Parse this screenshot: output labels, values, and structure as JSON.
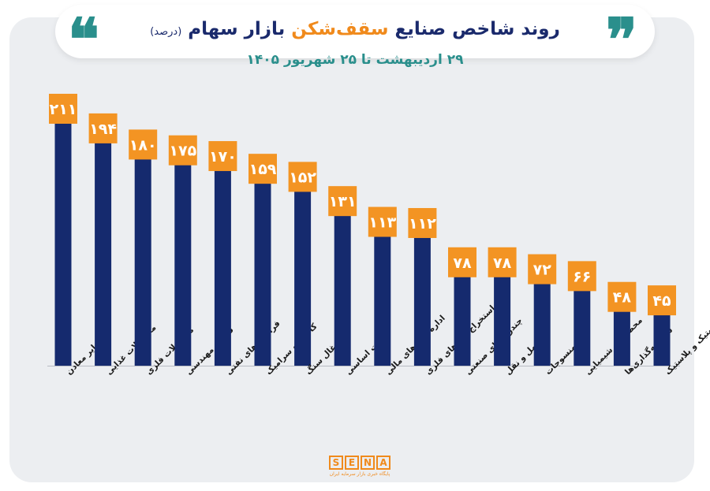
{
  "header": {
    "title_main": "روند شاخص صنایع",
    "title_accent": "سقف‌شکن",
    "title_end": "بازار سهام",
    "title_note": "(درصد)",
    "subtitle": "۲۹ اردیبهشت تا ۲۵ شهریور ۱۴۰۵",
    "quote_left": "❝",
    "quote_right": "❞"
  },
  "logo": {
    "letters": [
      "S",
      "E",
      "N",
      "A"
    ],
    "tagline": "پایگاه خبری بازار سرمایه ایران"
  },
  "chart_data": {
    "type": "bar",
    "title": "روند شاخص صنایع سقف‌شکن بازار سهام (درصد)",
    "subtitle": "۲۹ اردیبهشت تا ۲۵ شهریور ۱۴۰۵",
    "categories": [
      "سایر معادن",
      "محصولات غذایی",
      "محصولات فلزی",
      "فنی و مهندسی",
      "فرآورده‌های نفتی",
      "کاشی و سرامیک",
      "زغال سنگ",
      "فلزات اساسی",
      "اداره بازارهای مالی",
      "استخراج کانه‌های فلزی",
      "چندرشته‌ای صنعتی",
      "حمل و نقل",
      "منسوجات",
      "محصولات شیمیایی",
      "سرمایه‌گذاری‌ها",
      "لاستیک و پلاستیک"
    ],
    "values": [
      211,
      194,
      180,
      175,
      170,
      159,
      152,
      131,
      113,
      112,
      78,
      78,
      72,
      66,
      48,
      45
    ],
    "value_labels": [
      "۲۱۱",
      "۱۹۴",
      "۱۸۰",
      "۱۷۵",
      "۱۷۰",
      "۱۵۹",
      "۱۵۲",
      "۱۳۱",
      "۱۱۳",
      "۱۱۲",
      "۷۸",
      "۷۸",
      "۷۲",
      "۶۶",
      "۴۸",
      "۴۵"
    ],
    "ylim": [
      0,
      211
    ],
    "grid": false,
    "legend": "none",
    "colors": {
      "bar": "#152a6e",
      "label": "#f39423",
      "accent": "#f08a1c",
      "teal": "#2a8f8c"
    }
  }
}
